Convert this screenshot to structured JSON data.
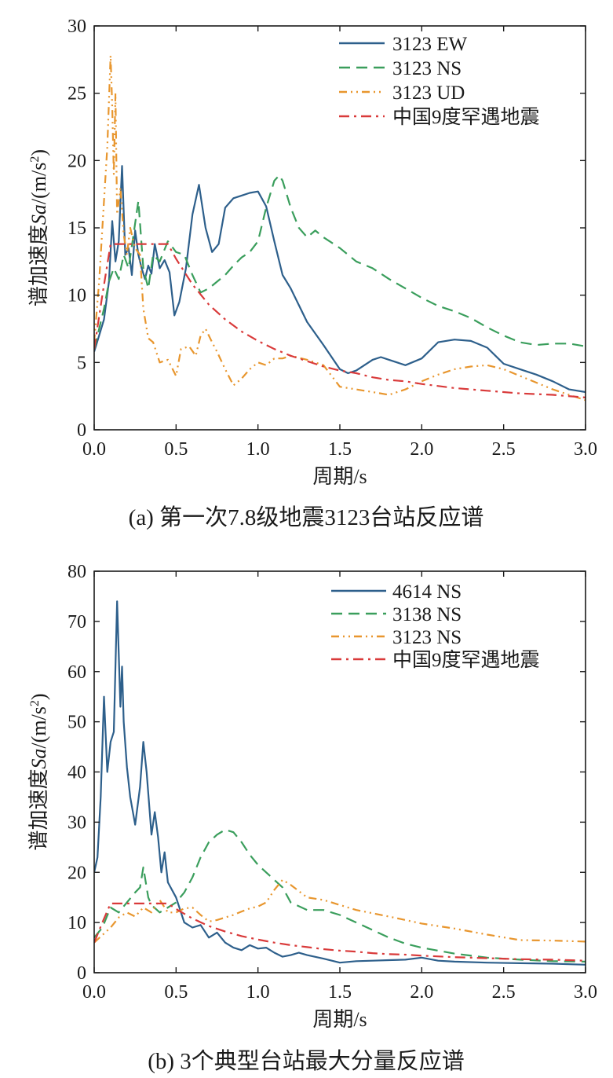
{
  "chart_data": [
    {
      "type": "line",
      "caption": "(a) 第一次7.8级地震3123台站反应谱",
      "xlabel": "周期/s",
      "ylabel_prefix": "谱加速度",
      "ylabel_italic": "Sa",
      "ylabel_unit": "/(m/s",
      "ylabel_sup": "2",
      "ylabel_close": ")",
      "xlim": [
        0,
        3
      ],
      "ylim": [
        0,
        30
      ],
      "xticks": [
        0,
        0.5,
        1,
        1.5,
        2,
        2.5,
        3
      ],
      "xtick_labels": [
        "0.0",
        "0.5",
        "1.0",
        "1.5",
        "2.0",
        "2.5",
        "3.0"
      ],
      "yticks": [
        0,
        5,
        10,
        15,
        20,
        25,
        30
      ],
      "ytick_labels": [
        "0",
        "5",
        "10",
        "15",
        "20",
        "25",
        "30"
      ],
      "legend_position": "top-right",
      "series": [
        {
          "name": "3123 EW",
          "color": "#2d5f8b",
          "dash": "solid",
          "x": [
            0,
            0.03,
            0.06,
            0.09,
            0.11,
            0.13,
            0.15,
            0.17,
            0.19,
            0.21,
            0.23,
            0.25,
            0.27,
            0.29,
            0.31,
            0.33,
            0.35,
            0.37,
            0.4,
            0.43,
            0.46,
            0.49,
            0.52,
            0.56,
            0.6,
            0.64,
            0.68,
            0.72,
            0.76,
            0.8,
            0.85,
            0.9,
            0.95,
            1.0,
            1.05,
            1.1,
            1.15,
            1.2,
            1.3,
            1.4,
            1.5,
            1.55,
            1.6,
            1.7,
            1.75,
            1.8,
            1.9,
            2.0,
            2.1,
            2.2,
            2.3,
            2.4,
            2.5,
            2.6,
            2.7,
            2.8,
            2.9,
            3.0
          ],
          "y": [
            5.8,
            7,
            8.2,
            11,
            15.5,
            12.5,
            14,
            19.6,
            13,
            13.5,
            11.5,
            14.8,
            13,
            12,
            11.2,
            12.2,
            11.6,
            13.8,
            12,
            12.6,
            11.7,
            8.5,
            9.5,
            12,
            16,
            18.2,
            15,
            13.2,
            13.8,
            16.5,
            17.2,
            17.4,
            17.6,
            17.7,
            16.6,
            14,
            11.5,
            10.5,
            8,
            6.3,
            4.5,
            4.2,
            4.4,
            5.2,
            5.4,
            5.2,
            4.8,
            5.3,
            6.5,
            6.7,
            6.6,
            6.1,
            4.9,
            4.5,
            4.1,
            3.6,
            3.0,
            2.8
          ]
        },
        {
          "name": "3123 NS",
          "color": "#3a9e5c",
          "dash": "dashed",
          "x": [
            0,
            0.03,
            0.06,
            0.09,
            0.12,
            0.15,
            0.18,
            0.21,
            0.24,
            0.27,
            0.3,
            0.33,
            0.36,
            0.4,
            0.45,
            0.5,
            0.55,
            0.6,
            0.65,
            0.7,
            0.75,
            0.8,
            0.85,
            0.9,
            0.95,
            1.0,
            1.05,
            1.1,
            1.13,
            1.15,
            1.2,
            1.25,
            1.3,
            1.35,
            1.4,
            1.5,
            1.6,
            1.7,
            1.8,
            1.9,
            2.0,
            2.1,
            2.2,
            2.3,
            2.4,
            2.5,
            2.6,
            2.7,
            2.8,
            2.9,
            3.0
          ],
          "y": [
            6,
            7.5,
            9,
            11,
            12,
            11.2,
            13,
            12,
            14.5,
            17,
            12,
            10.5,
            13,
            12.5,
            14,
            13.2,
            13,
            11.5,
            10.2,
            10.5,
            11,
            11.5,
            12.2,
            12.8,
            13.2,
            14,
            16.5,
            18.5,
            18.9,
            18.5,
            16.5,
            15,
            14.3,
            14.8,
            14.3,
            13.5,
            12.5,
            12,
            11.2,
            10.5,
            9.8,
            9.2,
            8.8,
            8.3,
            7.6,
            7,
            6.5,
            6.3,
            6.4,
            6.4,
            6.2
          ]
        },
        {
          "name": "3123 UD",
          "color": "#e8962e",
          "dash": "dashdotdot",
          "x": [
            0,
            0.03,
            0.06,
            0.08,
            0.1,
            0.11,
            0.12,
            0.13,
            0.14,
            0.16,
            0.18,
            0.2,
            0.22,
            0.25,
            0.28,
            0.3,
            0.33,
            0.36,
            0.4,
            0.45,
            0.5,
            0.53,
            0.58,
            0.62,
            0.65,
            0.68,
            0.72,
            0.75,
            0.8,
            0.85,
            0.9,
            0.95,
            1.0,
            1.05,
            1.1,
            1.15,
            1.2,
            1.3,
            1.4,
            1.45,
            1.5,
            1.6,
            1.7,
            1.8,
            1.9,
            2.0,
            2.1,
            2.2,
            2.3,
            2.4,
            2.5,
            2.6,
            2.7,
            2.8,
            2.9,
            3.0
          ],
          "y": [
            6.5,
            11,
            17,
            21,
            27.8,
            24,
            19,
            25,
            16,
            18,
            14.5,
            13,
            15,
            13.5,
            13,
            9,
            6.8,
            6.5,
            5,
            5.2,
            4,
            6,
            6.2,
            5.5,
            7,
            7.5,
            6.5,
            5.8,
            4.5,
            3.3,
            3.8,
            4.5,
            5,
            4.8,
            5.3,
            5.3,
            5.5,
            5.2,
            4.8,
            4,
            3.2,
            3,
            2.8,
            2.6,
            3,
            3.6,
            4.1,
            4.5,
            4.7,
            4.8,
            4.5,
            4,
            3.5,
            3,
            2.6,
            2.2
          ]
        },
        {
          "name": "中国9度罕遇地震",
          "color": "#d93a3a",
          "dash": "dashdot",
          "x": [
            0,
            0.05,
            0.1,
            0.15,
            0.2,
            0.25,
            0.3,
            0.35,
            0.4,
            0.45,
            0.5,
            0.6,
            0.7,
            0.8,
            0.9,
            1.0,
            1.1,
            1.2,
            1.3,
            1.4,
            1.5,
            1.6,
            1.7,
            1.8,
            1.9,
            2.0,
            2.2,
            2.4,
            2.6,
            2.8,
            3.0
          ],
          "y": [
            6,
            10,
            13.8,
            13.8,
            13.8,
            13.8,
            13.8,
            13.8,
            13.8,
            13.8,
            12.7,
            10.8,
            9.3,
            8.2,
            7.3,
            6.6,
            6,
            5.5,
            5.1,
            4.7,
            4.4,
            4.2,
            3.9,
            3.7,
            3.6,
            3.4,
            3.1,
            2.9,
            2.7,
            2.6,
            2.4
          ]
        }
      ]
    },
    {
      "type": "line",
      "caption": "(b) 3个典型台站最大分量反应谱",
      "xlabel": "周期/s",
      "ylabel_prefix": "谱加速度",
      "ylabel_italic": "Sa",
      "ylabel_unit": "/(m/s",
      "ylabel_sup": "2",
      "ylabel_close": ")",
      "xlim": [
        0,
        3
      ],
      "ylim": [
        0,
        80
      ],
      "xticks": [
        0,
        0.5,
        1,
        1.5,
        2,
        2.5,
        3
      ],
      "xtick_labels": [
        "0.0",
        "0.5",
        "1.0",
        "1.5",
        "2.0",
        "2.5",
        "3.0"
      ],
      "yticks": [
        0,
        10,
        20,
        30,
        40,
        50,
        60,
        70,
        80
      ],
      "ytick_labels": [
        "0",
        "10",
        "20",
        "30",
        "40",
        "50",
        "60",
        "70",
        "80"
      ],
      "legend_position": "top-right",
      "series": [
        {
          "name": "4614 NS",
          "color": "#2d5f8b",
          "dash": "solid",
          "x": [
            0,
            0.02,
            0.04,
            0.06,
            0.08,
            0.1,
            0.12,
            0.14,
            0.16,
            0.17,
            0.18,
            0.2,
            0.22,
            0.25,
            0.28,
            0.3,
            0.32,
            0.35,
            0.37,
            0.39,
            0.41,
            0.43,
            0.45,
            0.5,
            0.55,
            0.6,
            0.65,
            0.7,
            0.75,
            0.8,
            0.85,
            0.9,
            0.95,
            1.0,
            1.05,
            1.1,
            1.15,
            1.2,
            1.25,
            1.3,
            1.4,
            1.5,
            1.6,
            1.7,
            1.8,
            1.9,
            2.0,
            2.1,
            2.2,
            2.4,
            2.6,
            2.8,
            3.0
          ],
          "y": [
            20,
            23,
            35,
            55,
            40,
            46,
            48,
            74,
            53,
            61,
            50,
            41,
            35,
            29.5,
            37,
            46,
            40,
            27.5,
            32,
            27,
            20,
            24,
            18,
            15,
            10,
            9,
            9.5,
            7,
            8,
            6,
            5,
            4.5,
            5.5,
            4.8,
            5,
            4,
            3.2,
            3.5,
            4,
            3.5,
            2.8,
            2,
            2.3,
            2.4,
            2.5,
            2.6,
            3,
            2.4,
            2.2,
            2,
            1.9,
            1.8,
            1.6
          ]
        },
        {
          "name": "3138 NS",
          "color": "#3a9e5c",
          "dash": "dashed",
          "x": [
            0,
            0.05,
            0.1,
            0.15,
            0.2,
            0.25,
            0.28,
            0.3,
            0.33,
            0.35,
            0.4,
            0.45,
            0.5,
            0.55,
            0.6,
            0.65,
            0.7,
            0.75,
            0.8,
            0.85,
            0.9,
            0.95,
            1.0,
            1.05,
            1.1,
            1.15,
            1.2,
            1.3,
            1.4,
            1.5,
            1.6,
            1.7,
            1.8,
            1.9,
            2.0,
            2.2,
            2.4,
            2.6,
            2.8,
            3.0
          ],
          "y": [
            7,
            9,
            13,
            12,
            14,
            16,
            17,
            21,
            15,
            13.5,
            12,
            13,
            14,
            16,
            19,
            23,
            26,
            27.5,
            28.5,
            28,
            26,
            23.5,
            21.5,
            20,
            18.5,
            17,
            14,
            12.5,
            12.5,
            11.5,
            10,
            8.5,
            7,
            5.8,
            5,
            3.8,
            3,
            2.6,
            2.3,
            2.2
          ]
        },
        {
          "name": "3123 NS",
          "color": "#e8962e",
          "dash": "dashdotdot",
          "x": [
            0,
            0.05,
            0.1,
            0.15,
            0.2,
            0.25,
            0.3,
            0.35,
            0.4,
            0.45,
            0.5,
            0.55,
            0.6,
            0.65,
            0.7,
            0.75,
            0.8,
            0.85,
            0.9,
            0.95,
            1.0,
            1.05,
            1.1,
            1.15,
            1.2,
            1.3,
            1.4,
            1.5,
            1.6,
            1.8,
            2.0,
            2.2,
            2.4,
            2.6,
            2.8,
            3.0
          ],
          "y": [
            6,
            7.5,
            9,
            11,
            12,
            11.2,
            13,
            12,
            14.5,
            12,
            12,
            12.8,
            13,
            11.5,
            10.2,
            10.5,
            11,
            11.5,
            12.2,
            12.8,
            13.2,
            14,
            16.5,
            18.5,
            17.5,
            15,
            14.5,
            13.5,
            12.5,
            11.2,
            9.8,
            8.8,
            7.6,
            6.5,
            6.4,
            6.2
          ]
        },
        {
          "name": "中国9度罕遇地震",
          "color": "#d93a3a",
          "dash": "dashdot",
          "x": [
            0,
            0.05,
            0.1,
            0.15,
            0.2,
            0.25,
            0.3,
            0.35,
            0.4,
            0.45,
            0.5,
            0.6,
            0.7,
            0.8,
            0.9,
            1.0,
            1.1,
            1.2,
            1.3,
            1.4,
            1.5,
            1.6,
            1.7,
            1.8,
            1.9,
            2.0,
            2.2,
            2.4,
            2.6,
            2.8,
            3.0
          ],
          "y": [
            6,
            10,
            13.8,
            13.8,
            13.8,
            13.8,
            13.8,
            13.8,
            13.8,
            13.8,
            12.7,
            10.8,
            9.3,
            8.2,
            7.3,
            6.6,
            6,
            5.5,
            5.1,
            4.7,
            4.4,
            4.2,
            3.9,
            3.7,
            3.6,
            3.4,
            3.1,
            2.9,
            2.7,
            2.6,
            2.4
          ]
        }
      ]
    }
  ]
}
